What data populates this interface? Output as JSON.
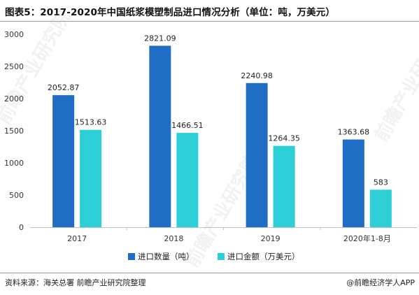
{
  "header": {
    "title": "图表5：2017-2020年中国纸浆模塑制品进口情况分析（单位：吨，万美元）"
  },
  "footer": {
    "source": "资料来源：海关总署 前瞻产业研究院整理",
    "brand": "@前瞻经济学人APP"
  },
  "watermark": "前瞻产业研究院",
  "colors": {
    "series_1": "#1f6dc4",
    "series_2": "#2dcfd6",
    "axis": "#bfbfbf",
    "grid": "#e8e8e8"
  },
  "chart_data": {
    "type": "bar",
    "title": "图表5：2017-2020年中国纸浆模塑制品进口情况分析（单位：吨，万美元）",
    "categories": [
      "2017",
      "2018",
      "2019",
      "2020年1-8月"
    ],
    "series": [
      {
        "name": "进口数量（吨）",
        "values": [
          2052.87,
          2821.09,
          2240.98,
          1363.68
        ],
        "labels": [
          "2052.87",
          "2821.09",
          "2240.98",
          "1363.68"
        ]
      },
      {
        "name": "进口金额（万美元）",
        "values": [
          1513.63,
          1466.51,
          1264.35,
          583
        ],
        "labels": [
          "1513.63",
          "1466.51",
          "1264.35",
          "583"
        ]
      }
    ],
    "ylim": [
      0,
      3000
    ],
    "yticks": [
      "0",
      "500",
      "1000",
      "1500",
      "2000",
      "2500",
      "3000"
    ],
    "legend_position": "bottom",
    "grid": false
  }
}
